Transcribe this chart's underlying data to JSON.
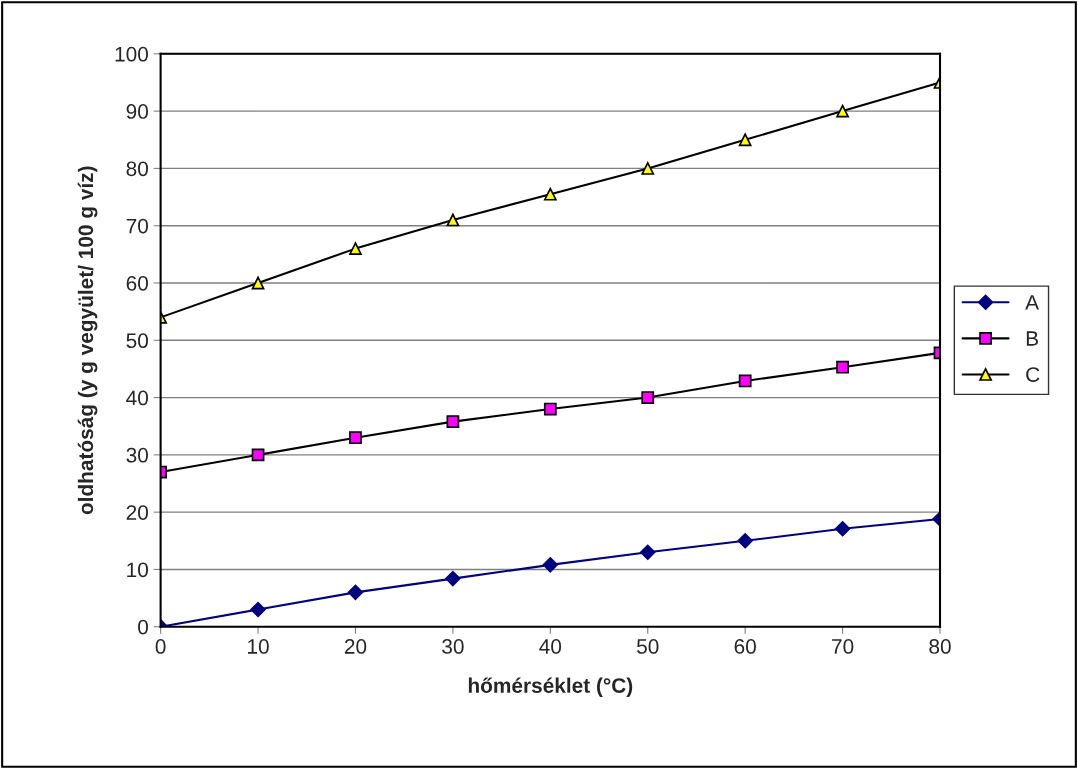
{
  "chart_data": {
    "type": "line",
    "xlabel": "hőmérséklet (°C)",
    "ylabel": "oldhatóság (y g vegyület/ 100 g víz)",
    "x": [
      0,
      10,
      20,
      30,
      40,
      50,
      60,
      70,
      80
    ],
    "series": [
      {
        "name": "A",
        "color": "#000080",
        "marker": "diamond",
        "values": [
          0,
          3,
          6,
          8.4,
          10.8,
          13,
          15,
          17.1,
          18.8
        ]
      },
      {
        "name": "B",
        "color": "#ff00ff",
        "marker": "square",
        "values": [
          27,
          30,
          33,
          35.8,
          38,
          40,
          42.9,
          45.3,
          47.8
        ]
      },
      {
        "name": "C",
        "color": "#ffff00",
        "marker": "triangle",
        "values": [
          54,
          60,
          66,
          71,
          75.5,
          80,
          85,
          90,
          95
        ]
      }
    ],
    "xlim": [
      0,
      80
    ],
    "xticks": [
      0,
      10,
      20,
      30,
      40,
      50,
      60,
      70,
      80
    ],
    "ylim": [
      0,
      100
    ],
    "yticks": [
      0,
      10,
      20,
      30,
      40,
      50,
      60,
      70,
      80,
      90,
      100
    ],
    "grid": "y",
    "legend": "right",
    "line_style": "solid"
  }
}
